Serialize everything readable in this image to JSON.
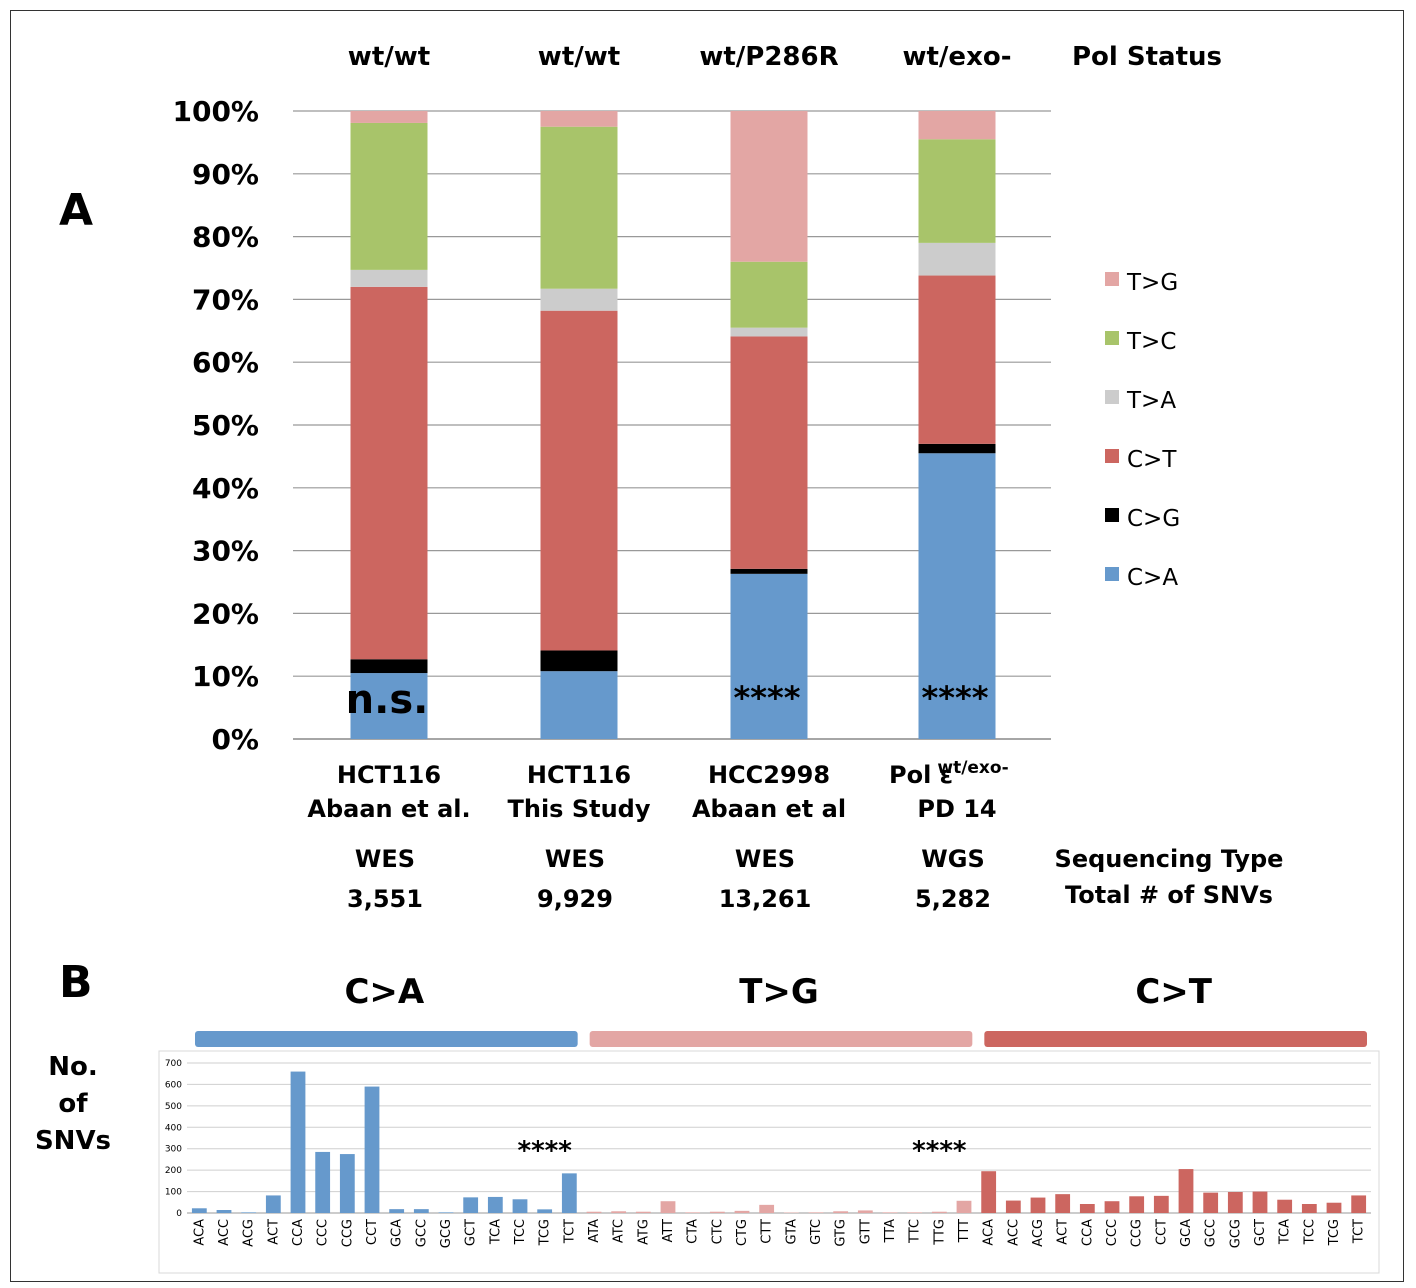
{
  "chart_data": [
    {
      "type": "bar",
      "stacked": true,
      "panel_label": "A",
      "categories": [
        "HCT116 Abaan et al.",
        "HCT116 This Study",
        "HCC2998 Abaan et al",
        "Pol ε wt/exo- PD 14"
      ],
      "category_lines": [
        [
          "HCT116",
          "Abaan et al."
        ],
        [
          "HCT116",
          "This Study"
        ],
        [
          "HCC2998",
          "Abaan et al"
        ],
        [
          "Pol ε",
          "PD 14"
        ]
      ],
      "category_superscript": [
        "",
        "",
        "",
        "wt/exo-"
      ],
      "pol_status": [
        "wt/wt",
        "wt/wt",
        "wt/P286R",
        "wt/exo-"
      ],
      "pol_status_label": "Pol Status",
      "sequencing_type": [
        "WES",
        "WES",
        "WES",
        "WGS"
      ],
      "sequencing_type_label": "Sequencing Type",
      "total_snvs": [
        "3,551",
        "9,929",
        "13,261",
        "5,282"
      ],
      "total_snvs_label": "Total # of SNVs",
      "significance": [
        "n.s.",
        "",
        "****",
        "****"
      ],
      "yticks": [
        "0%",
        "10%",
        "20%",
        "30%",
        "40%",
        "50%",
        "60%",
        "70%",
        "80%",
        "90%",
        "100%"
      ],
      "ylim": [
        0,
        100
      ],
      "grid": true,
      "legend_position": "right",
      "series": [
        {
          "name": "C>A",
          "color": "#6699cc",
          "values": [
            10.5,
            10.8,
            26.3,
            45.5
          ]
        },
        {
          "name": "C>G",
          "color": "#000000",
          "values": [
            2.2,
            3.3,
            0.8,
            1.5
          ]
        },
        {
          "name": "C>T",
          "color": "#cc6660",
          "values": [
            59.3,
            54.1,
            37.0,
            26.8
          ]
        },
        {
          "name": "T>A",
          "color": "#cccccc",
          "values": [
            2.7,
            3.5,
            1.4,
            5.2
          ]
        },
        {
          "name": "T>C",
          "color": "#a8c46a",
          "values": [
            23.4,
            25.8,
            10.5,
            16.5
          ]
        },
        {
          "name": "T>G",
          "color": "#e3a6a4",
          "values": [
            1.9,
            2.5,
            24.0,
            4.5
          ]
        }
      ]
    },
    {
      "type": "bar",
      "panel_label": "B",
      "ylabel_lines": [
        "No.",
        "of",
        "SNVs"
      ],
      "ylim": [
        0,
        700
      ],
      "yticks": [
        "0",
        "100",
        "200",
        "300",
        "400",
        "500",
        "600",
        "700"
      ],
      "grid": true,
      "groups": [
        {
          "name": "C>A",
          "color": "#6699cc",
          "significance": "****",
          "categories": [
            "ACA",
            "ACC",
            "ACG",
            "ACT",
            "CCA",
            "CCC",
            "CCG",
            "CCT",
            "GCA",
            "GCC",
            "GCG",
            "GCT",
            "TCA",
            "TCC",
            "TCG",
            "TCT"
          ],
          "values": [
            22,
            14,
            3,
            82,
            660,
            285,
            275,
            590,
            18,
            18,
            3,
            73,
            75,
            64,
            17,
            185
          ]
        },
        {
          "name": "T>G",
          "color": "#e3a6a4",
          "significance": "****",
          "categories": [
            "ATA",
            "ATC",
            "ATG",
            "ATT",
            "CTA",
            "CTC",
            "CTG",
            "CTT",
            "GTA",
            "GTC",
            "GTG",
            "GTT",
            "TTA",
            "TTC",
            "TTG",
            "TTT"
          ],
          "values": [
            6,
            8,
            6,
            55,
            3,
            6,
            10,
            38,
            2,
            3,
            8,
            12,
            3,
            3,
            6,
            57
          ]
        },
        {
          "name": "C>T",
          "color": "#cc6660",
          "significance": "",
          "categories": [
            "ACA",
            "ACC",
            "ACG",
            "ACT",
            "CCA",
            "CCC",
            "CCG",
            "CCT",
            "GCA",
            "GCC",
            "GCG",
            "GCT",
            "TCA",
            "TCC",
            "TCG",
            "TCT"
          ],
          "values": [
            195,
            58,
            72,
            88,
            42,
            55,
            78,
            80,
            205,
            95,
            98,
            100,
            62,
            42,
            48,
            82
          ]
        }
      ]
    }
  ]
}
